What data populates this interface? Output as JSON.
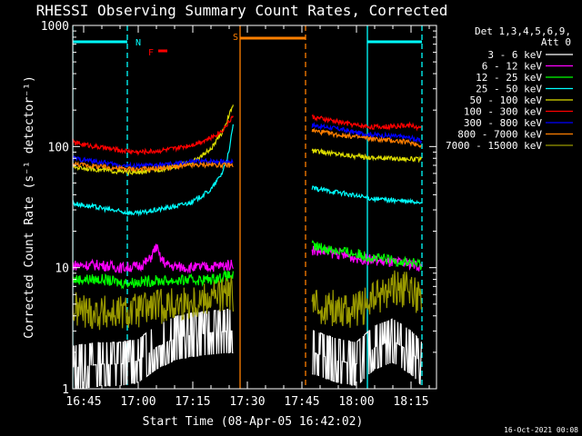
{
  "chart_data": {
    "type": "line",
    "title": "RHESSI Observing Summary Count Rates, Corrected",
    "xlabel": "Start Time (08-Apr-05 16:42:02)",
    "ylabel": "Corrected Count Rate (s⁻¹ detector⁻¹)",
    "x_ticks": [
      "16:45",
      "17:00",
      "17:15",
      "17:30",
      "17:45",
      "18:00",
      "18:15"
    ],
    "x_tick_minutes": [
      165,
      180,
      195,
      210,
      225,
      240,
      255
    ],
    "xlim_minutes": [
      162,
      262
    ],
    "y_scale": "log",
    "ylim": [
      1,
      1000
    ],
    "y_ticks": [
      "1",
      "10",
      "100",
      "1000"
    ],
    "legend": {
      "header": [
        "Det 1,3,4,5,6,9,",
        "Att 0"
      ],
      "placement": "right"
    },
    "flags": [
      {
        "label": "N",
        "color": "#00ffff"
      },
      {
        "label": "F",
        "color": "#ff0000"
      },
      {
        "label": "S",
        "color": "#ff7f00"
      }
    ],
    "gaps": [
      [
        206.2,
        227.8
      ]
    ],
    "vertical_markers": [
      {
        "x": 162,
        "color": "#00ffff",
        "style": "solid"
      },
      {
        "x": 177,
        "color": "#00ffff",
        "style": "dash"
      },
      {
        "x": 208,
        "color": "#ff7f00",
        "style": "solid"
      },
      {
        "x": 226,
        "color": "#ff7f00",
        "style": "dash"
      },
      {
        "x": 243,
        "color": "#00ffff",
        "style": "solid"
      },
      {
        "x": 258,
        "color": "#00ffff",
        "style": "dash"
      }
    ],
    "flag_bars": [
      {
        "x": [
          162,
          177
        ],
        "level": 0.955,
        "color": "#00ffff"
      },
      {
        "x": [
          185.5,
          188
        ],
        "level": 0.93,
        "color": "#ff0000"
      },
      {
        "x": [
          208,
          226
        ],
        "level": 0.965,
        "color": "#ff7f00"
      },
      {
        "x": [
          243,
          258
        ],
        "level": 0.955,
        "color": "#00ffff"
      }
    ],
    "series": [
      {
        "name": "3 - 6 keV",
        "color": "#ffffff",
        "x": [
          162,
          170,
          175,
          180,
          185,
          190,
          195,
          200,
          205,
          206,
          228,
          235,
          240,
          245,
          250,
          255,
          258
        ],
        "y": [
          1.5,
          1.6,
          1.6,
          1.7,
          2.2,
          2.6,
          2.8,
          2.9,
          3.0,
          3.0,
          2.0,
          1.7,
          1.6,
          2.2,
          2.5,
          2.0,
          1.6
        ]
      },
      {
        "name": "6 - 12 keV",
        "color": "#ff00ff",
        "x": [
          162,
          170,
          175,
          180,
          183,
          185,
          186,
          188,
          190,
          195,
          200,
          205,
          206,
          228,
          235,
          240,
          245,
          250,
          255,
          258
        ],
        "y": [
          10.5,
          10.5,
          10.0,
          10.2,
          11.5,
          15.0,
          12.0,
          10.5,
          10.2,
          10.0,
          10.2,
          10.5,
          10.8,
          14.0,
          13.0,
          12.0,
          11.5,
          11.0,
          10.8,
          10.0
        ]
      },
      {
        "name": "12 - 25 keV",
        "color": "#00ff00",
        "x": [
          162,
          170,
          175,
          180,
          185,
          190,
          195,
          200,
          205,
          206,
          228,
          235,
          240,
          245,
          250,
          255,
          258
        ],
        "y": [
          8.0,
          8.0,
          7.5,
          7.6,
          7.8,
          7.8,
          7.9,
          8.0,
          8.6,
          8.6,
          15.0,
          13.8,
          13.0,
          12.0,
          11.5,
          11.0,
          10.5
        ]
      },
      {
        "name": "25 - 50 keV",
        "color": "#00ffff",
        "x": [
          162,
          170,
          175,
          180,
          185,
          190,
          195,
          200,
          203,
          205,
          206,
          228,
          235,
          240,
          245,
          250,
          255,
          258
        ],
        "y": [
          34,
          31,
          29,
          28,
          30,
          32,
          35,
          44,
          60,
          90,
          150,
          45,
          42,
          39,
          37,
          36,
          35,
          35
        ]
      },
      {
        "name": "50 - 100 keV",
        "color": "#dddd00",
        "x": [
          162,
          170,
          175,
          180,
          185,
          190,
          195,
          200,
          203,
          205,
          206,
          228,
          235,
          240,
          245,
          250,
          255,
          258
        ],
        "y": [
          68,
          64,
          62,
          61,
          64,
          68,
          75,
          95,
          130,
          180,
          220,
          92,
          87,
          83,
          81,
          80,
          79,
          78
        ]
      },
      {
        "name": "100 - 300 keV",
        "color": "#ff0000",
        "x": [
          162,
          170,
          175,
          180,
          185,
          190,
          195,
          200,
          203,
          205,
          206,
          228,
          235,
          240,
          245,
          250,
          255,
          258
        ],
        "y": [
          108,
          98,
          93,
          90,
          92,
          96,
          104,
          118,
          135,
          160,
          180,
          175,
          160,
          150,
          145,
          147,
          150,
          140
        ]
      },
      {
        "name": "300 - 800 keV",
        "color": "#0000ff",
        "x": [
          162,
          170,
          175,
          180,
          185,
          190,
          195,
          200,
          205,
          206,
          228,
          235,
          240,
          245,
          250,
          255,
          258
        ],
        "y": [
          80,
          74,
          70,
          69,
          70,
          72,
          75,
          76,
          75,
          76,
          150,
          140,
          130,
          125,
          122,
          118,
          110
        ]
      },
      {
        "name": "800 - 7000 keV",
        "color": "#ff7f00",
        "x": [
          162,
          170,
          175,
          180,
          185,
          190,
          195,
          200,
          205,
          206,
          228,
          235,
          240,
          245,
          250,
          255,
          258
        ],
        "y": [
          72,
          68,
          66,
          65,
          66,
          68,
          70,
          71,
          70,
          70,
          135,
          125,
          120,
          115,
          112,
          108,
          102
        ]
      },
      {
        "name": "7000 - 15000 keV",
        "color": "#999900",
        "x": [
          162,
          170,
          175,
          180,
          185,
          190,
          195,
          200,
          205,
          206,
          228,
          235,
          240,
          245,
          250,
          255,
          258
        ],
        "y": [
          4.5,
          4.2,
          4.2,
          4.4,
          4.8,
          4.9,
          5.2,
          5.8,
          6.0,
          6.1,
          4.8,
          4.6,
          4.4,
          5.5,
          6.8,
          6.5,
          5.4
        ]
      }
    ]
  },
  "timestamp": "16-Oct-2021 00:08"
}
